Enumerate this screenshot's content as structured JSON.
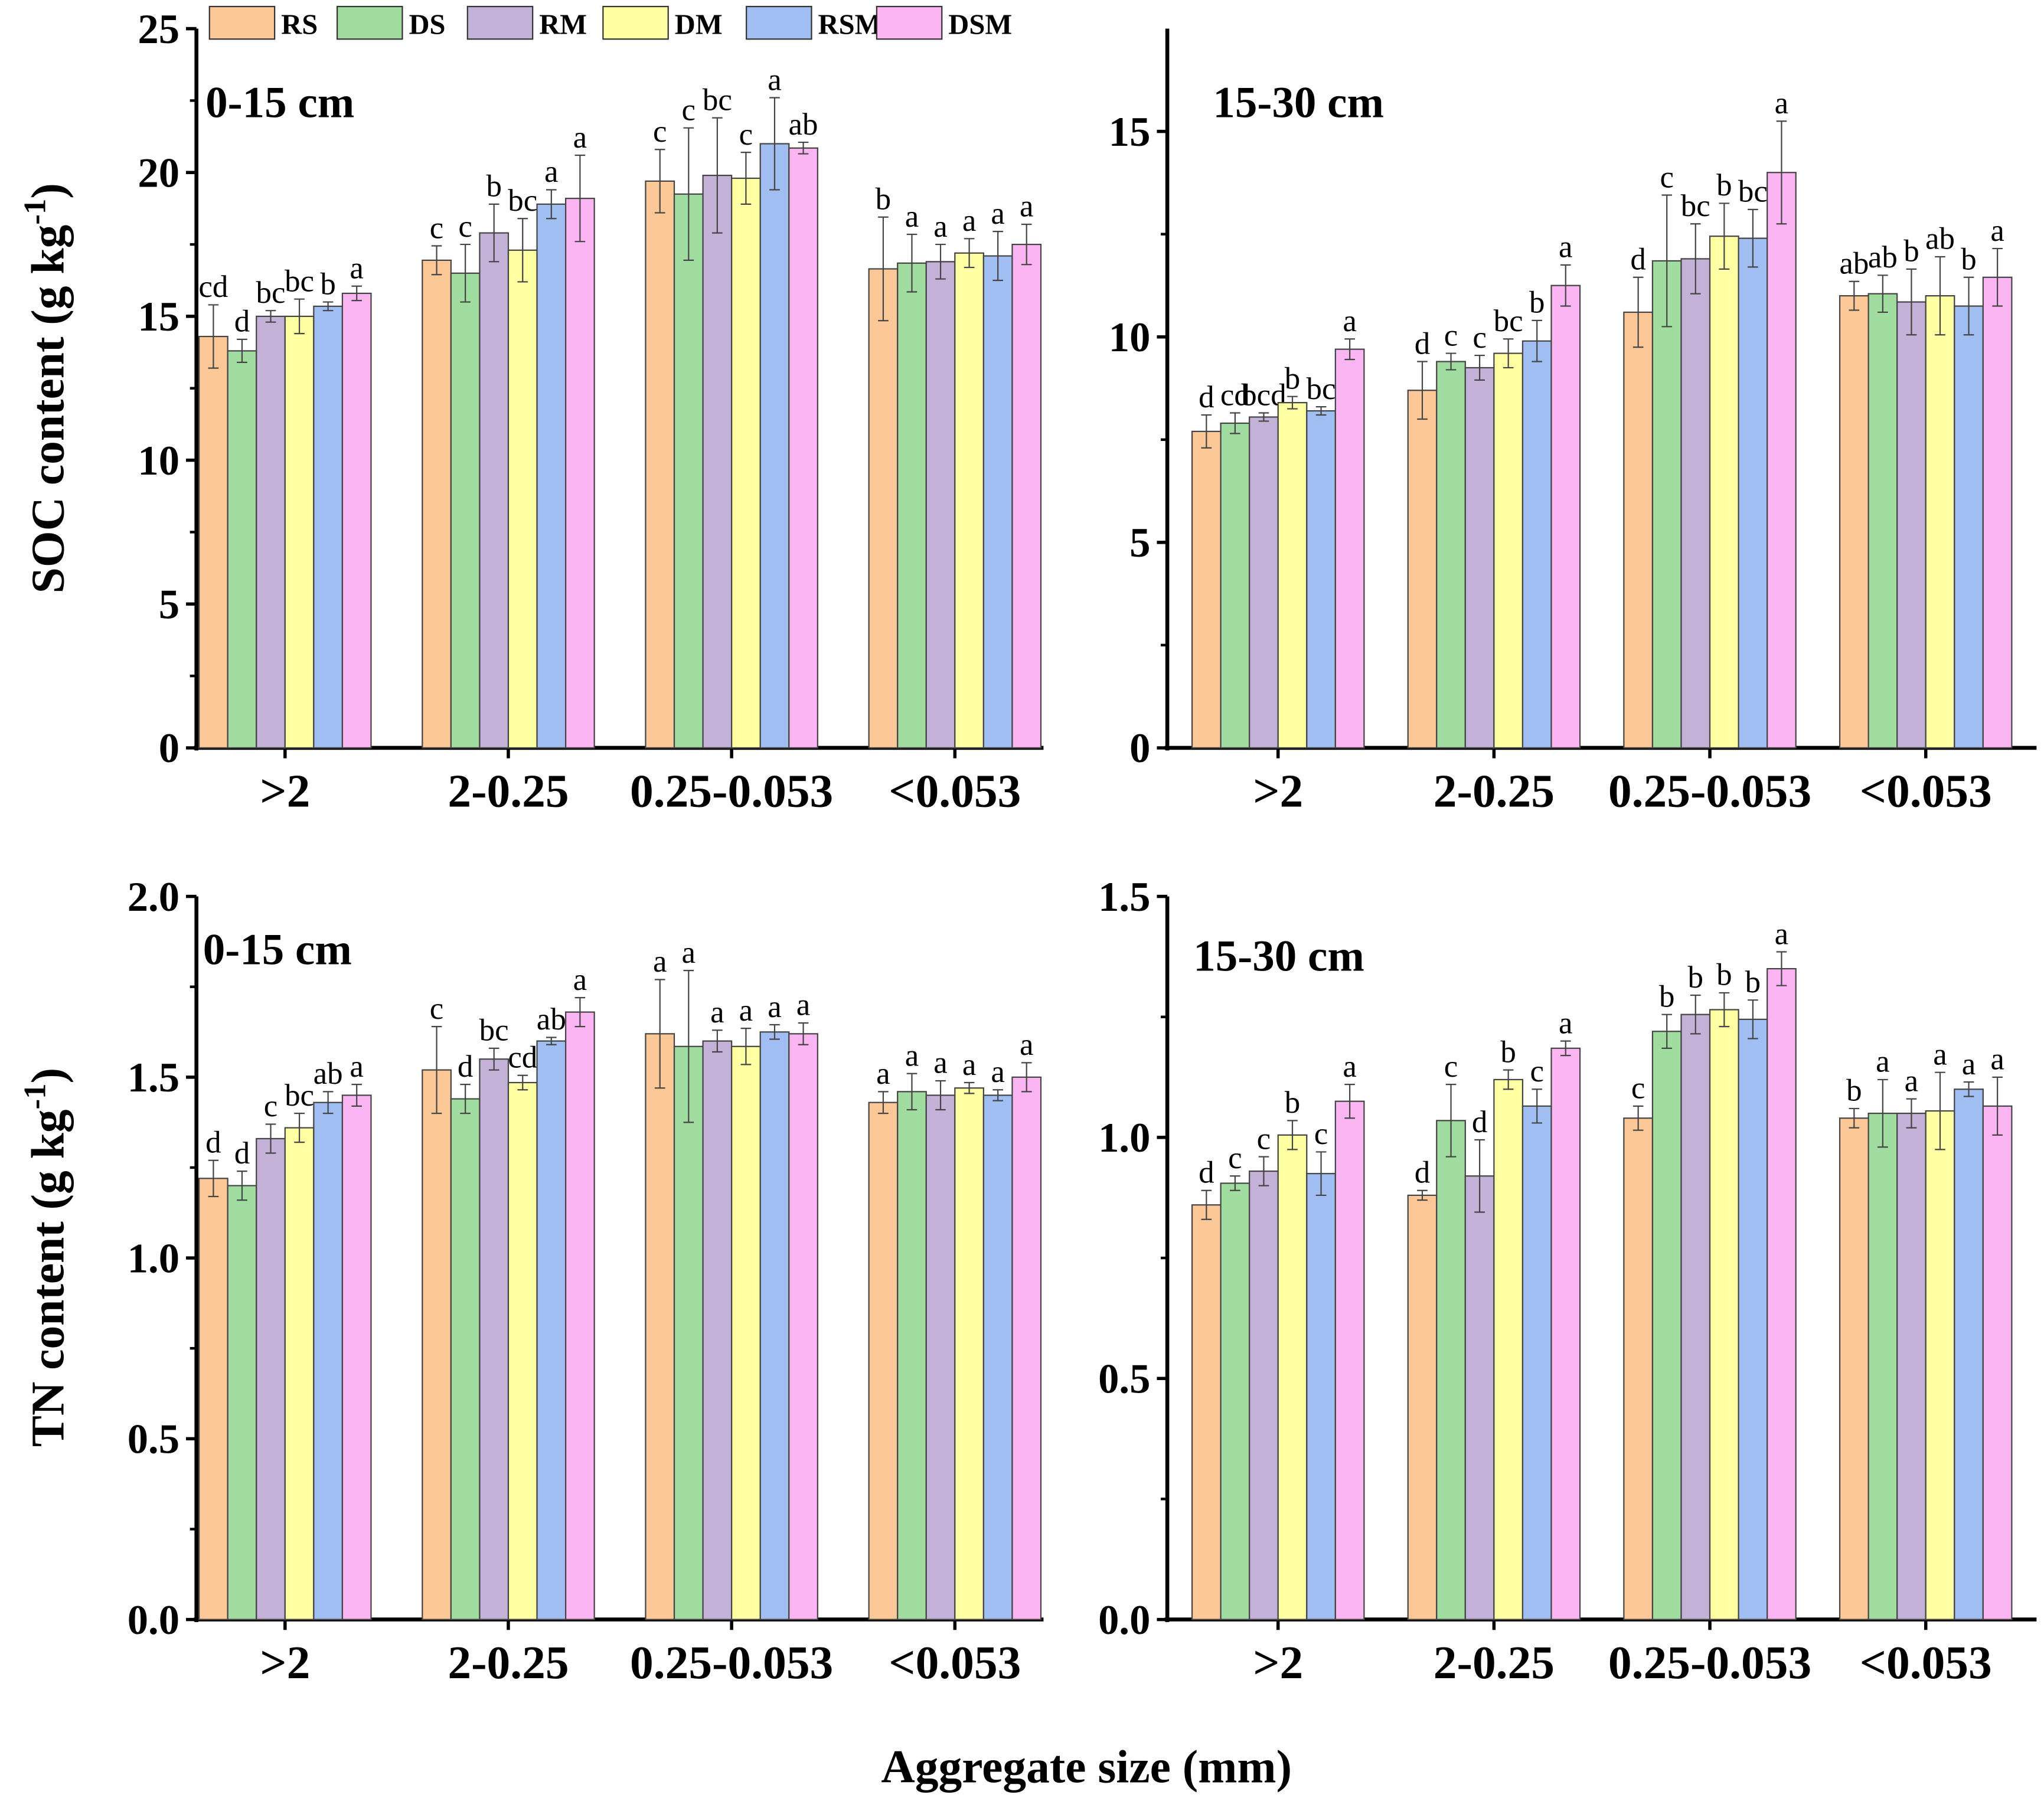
{
  "legend": [
    {
      "name": "RS",
      "color": "#FDC897"
    },
    {
      "name": "DS",
      "color": "#A0DBA0"
    },
    {
      "name": "RM",
      "color": "#C3B1D8"
    },
    {
      "name": "DM",
      "color": "#FFFFA3"
    },
    {
      "name": "RSM",
      "color": "#A1BEF3"
    },
    {
      "name": "DSM",
      "color": "#FBB5F3"
    }
  ],
  "xlabel": "Aggregate size (mm)",
  "chart_data": [
    {
      "type": "bar",
      "panel_label": "0-15 cm",
      "ylabel": "SOC content (g kg",
      "ylabel_sup": "-1",
      "ylabel_end": ")",
      "ylim": [
        0,
        25
      ],
      "yticks": [
        "0",
        "5",
        "10",
        "15",
        "20",
        "25"
      ],
      "ytick_values": [
        0,
        5,
        10,
        15,
        20,
        25
      ],
      "categories": [
        ">2",
        "2-0.25",
        "0.25-0.053",
        "<0.053"
      ],
      "series": [
        {
          "name": "RS",
          "values": [
            14.3,
            16.95,
            19.7,
            16.65
          ],
          "errors": [
            1.1,
            0.5,
            1.1,
            1.8
          ],
          "letters": [
            "cd",
            "c",
            "c",
            "b"
          ]
        },
        {
          "name": "DS",
          "values": [
            13.8,
            16.5,
            19.25,
            16.85
          ],
          "errors": [
            0.4,
            1.0,
            2.3,
            1.0
          ],
          "letters": [
            "d",
            "c",
            "c",
            "a"
          ]
        },
        {
          "name": "RM",
          "values": [
            15.0,
            17.9,
            19.9,
            16.9
          ],
          "errors": [
            0.2,
            1.0,
            2.0,
            0.6
          ],
          "letters": [
            "bc",
            "b",
            "bc",
            "a"
          ]
        },
        {
          "name": "DM",
          "values": [
            15.0,
            17.3,
            19.8,
            17.2
          ],
          "errors": [
            0.6,
            1.1,
            0.9,
            0.5
          ],
          "letters": [
            "bc",
            "bc",
            "c",
            "a"
          ]
        },
        {
          "name": "RSM",
          "values": [
            15.35,
            18.9,
            21.0,
            17.1
          ],
          "errors": [
            0.15,
            0.5,
            1.6,
            0.85
          ],
          "letters": [
            "b",
            "a",
            "a",
            "a"
          ]
        },
        {
          "name": "DSM",
          "values": [
            15.8,
            19.1,
            20.85,
            17.5
          ],
          "errors": [
            0.25,
            1.5,
            0.2,
            0.7
          ],
          "letters": [
            "a",
            "a",
            "ab",
            "a"
          ]
        }
      ]
    },
    {
      "type": "bar",
      "panel_label": "15-30 cm",
      "ylabel": "",
      "ylim": [
        0,
        17.5
      ],
      "yticks": [
        "0",
        "5",
        "10",
        "15"
      ],
      "ytick_values": [
        0,
        5,
        10,
        15
      ],
      "categories": [
        ">2",
        "2-0.25",
        "0.25-0.053",
        "<0.053"
      ],
      "series": [
        {
          "name": "RS",
          "values": [
            7.7,
            8.7,
            10.6,
            11.0
          ],
          "errors": [
            0.4,
            0.7,
            0.85,
            0.35
          ],
          "letters": [
            "d",
            "d",
            "d",
            "ab"
          ]
        },
        {
          "name": "DS",
          "values": [
            7.9,
            9.4,
            11.85,
            11.05
          ],
          "errors": [
            0.25,
            0.2,
            1.6,
            0.45
          ],
          "letters": [
            "cd",
            "c",
            "c",
            "ab"
          ]
        },
        {
          "name": "RM",
          "values": [
            8.05,
            9.25,
            11.9,
            10.85
          ],
          "errors": [
            0.1,
            0.3,
            0.85,
            0.8
          ],
          "letters": [
            "bcd",
            "c",
            "bc",
            "b"
          ]
        },
        {
          "name": "DM",
          "values": [
            8.4,
            9.6,
            12.45,
            11.0
          ],
          "errors": [
            0.15,
            0.35,
            0.8,
            0.95
          ],
          "letters": [
            "b",
            "bc",
            "b",
            "ab"
          ]
        },
        {
          "name": "RSM",
          "values": [
            8.2,
            9.9,
            12.4,
            10.75
          ],
          "errors": [
            0.1,
            0.5,
            0.7,
            0.7
          ],
          "letters": [
            "bc",
            "b",
            "bc",
            "b"
          ]
        },
        {
          "name": "DSM",
          "values": [
            9.7,
            11.25,
            14.0,
            11.45
          ],
          "errors": [
            0.25,
            0.5,
            1.25,
            0.7
          ],
          "letters": [
            "a",
            "a",
            "a",
            "a"
          ]
        }
      ]
    },
    {
      "type": "bar",
      "panel_label": "0-15 cm",
      "ylabel": "TN content (g kg",
      "ylabel_sup": "-1",
      "ylabel_end": ")",
      "ylim": [
        0,
        2.0
      ],
      "yticks": [
        "0.0",
        "0.5",
        "1.0",
        "1.5",
        "2.0"
      ],
      "ytick_values": [
        0,
        0.5,
        1.0,
        1.5,
        2.0
      ],
      "categories": [
        ">2",
        "2-0.25",
        "0.25-0.053",
        "<0.053"
      ],
      "series": [
        {
          "name": "RS",
          "values": [
            1.22,
            1.52,
            1.62,
            1.43
          ],
          "errors": [
            0.05,
            0.12,
            0.15,
            0.03
          ],
          "letters": [
            "d",
            "c",
            "a",
            "a"
          ]
        },
        {
          "name": "DS",
          "values": [
            1.2,
            1.44,
            1.585,
            1.46
          ],
          "errors": [
            0.04,
            0.04,
            0.21,
            0.05
          ],
          "letters": [
            "d",
            "d",
            "a",
            "a"
          ]
        },
        {
          "name": "RM",
          "values": [
            1.33,
            1.55,
            1.6,
            1.45
          ],
          "errors": [
            0.04,
            0.03,
            0.03,
            0.04
          ],
          "letters": [
            "c",
            "bc",
            "a",
            "a"
          ]
        },
        {
          "name": "DM",
          "values": [
            1.36,
            1.485,
            1.585,
            1.47
          ],
          "errors": [
            0.04,
            0.02,
            0.05,
            0.015
          ],
          "letters": [
            "bc",
            "cd",
            "a",
            "a"
          ]
        },
        {
          "name": "RSM",
          "values": [
            1.43,
            1.6,
            1.625,
            1.45
          ],
          "errors": [
            0.03,
            0.01,
            0.02,
            0.015
          ],
          "letters": [
            "ab",
            "ab",
            "a",
            "a"
          ]
        },
        {
          "name": "DSM",
          "values": [
            1.45,
            1.68,
            1.62,
            1.5
          ],
          "errors": [
            0.03,
            0.04,
            0.03,
            0.04
          ],
          "letters": [
            "a",
            "a",
            "a",
            "a"
          ]
        }
      ]
    },
    {
      "type": "bar",
      "panel_label": "15-30 cm",
      "ylabel": "",
      "ylim": [
        0,
        1.5
      ],
      "yticks": [
        "0.0",
        "0.5",
        "1.0",
        "1.5"
      ],
      "ytick_values": [
        0,
        0.5,
        1.0,
        1.5
      ],
      "categories": [
        ">2",
        "2-0.25",
        "0.25-0.053",
        "<0.053"
      ],
      "series": [
        {
          "name": "RS",
          "values": [
            0.86,
            0.88,
            1.04,
            1.04
          ],
          "errors": [
            0.03,
            0.01,
            0.025,
            0.02
          ],
          "letters": [
            "d",
            "d",
            "c",
            "b"
          ]
        },
        {
          "name": "DS",
          "values": [
            0.905,
            1.035,
            1.22,
            1.05
          ],
          "errors": [
            0.015,
            0.075,
            0.035,
            0.07
          ],
          "letters": [
            "c",
            "c",
            "b",
            "a"
          ]
        },
        {
          "name": "RM",
          "values": [
            0.93,
            0.92,
            1.255,
            1.05
          ],
          "errors": [
            0.03,
            0.075,
            0.04,
            0.03
          ],
          "letters": [
            "c",
            "d",
            "b",
            "a"
          ]
        },
        {
          "name": "DM",
          "values": [
            1.005,
            1.12,
            1.265,
            1.055
          ],
          "errors": [
            0.03,
            0.02,
            0.035,
            0.08
          ],
          "letters": [
            "b",
            "b",
            "b",
            "a"
          ]
        },
        {
          "name": "RSM",
          "values": [
            0.925,
            1.065,
            1.245,
            1.1
          ],
          "errors": [
            0.045,
            0.035,
            0.04,
            0.015
          ],
          "letters": [
            "c",
            "c",
            "b",
            "a"
          ]
        },
        {
          "name": "DSM",
          "values": [
            1.075,
            1.185,
            1.35,
            1.065
          ],
          "errors": [
            0.035,
            0.015,
            0.035,
            0.06
          ],
          "letters": [
            "a",
            "a",
            "a",
            "a"
          ]
        }
      ]
    }
  ]
}
